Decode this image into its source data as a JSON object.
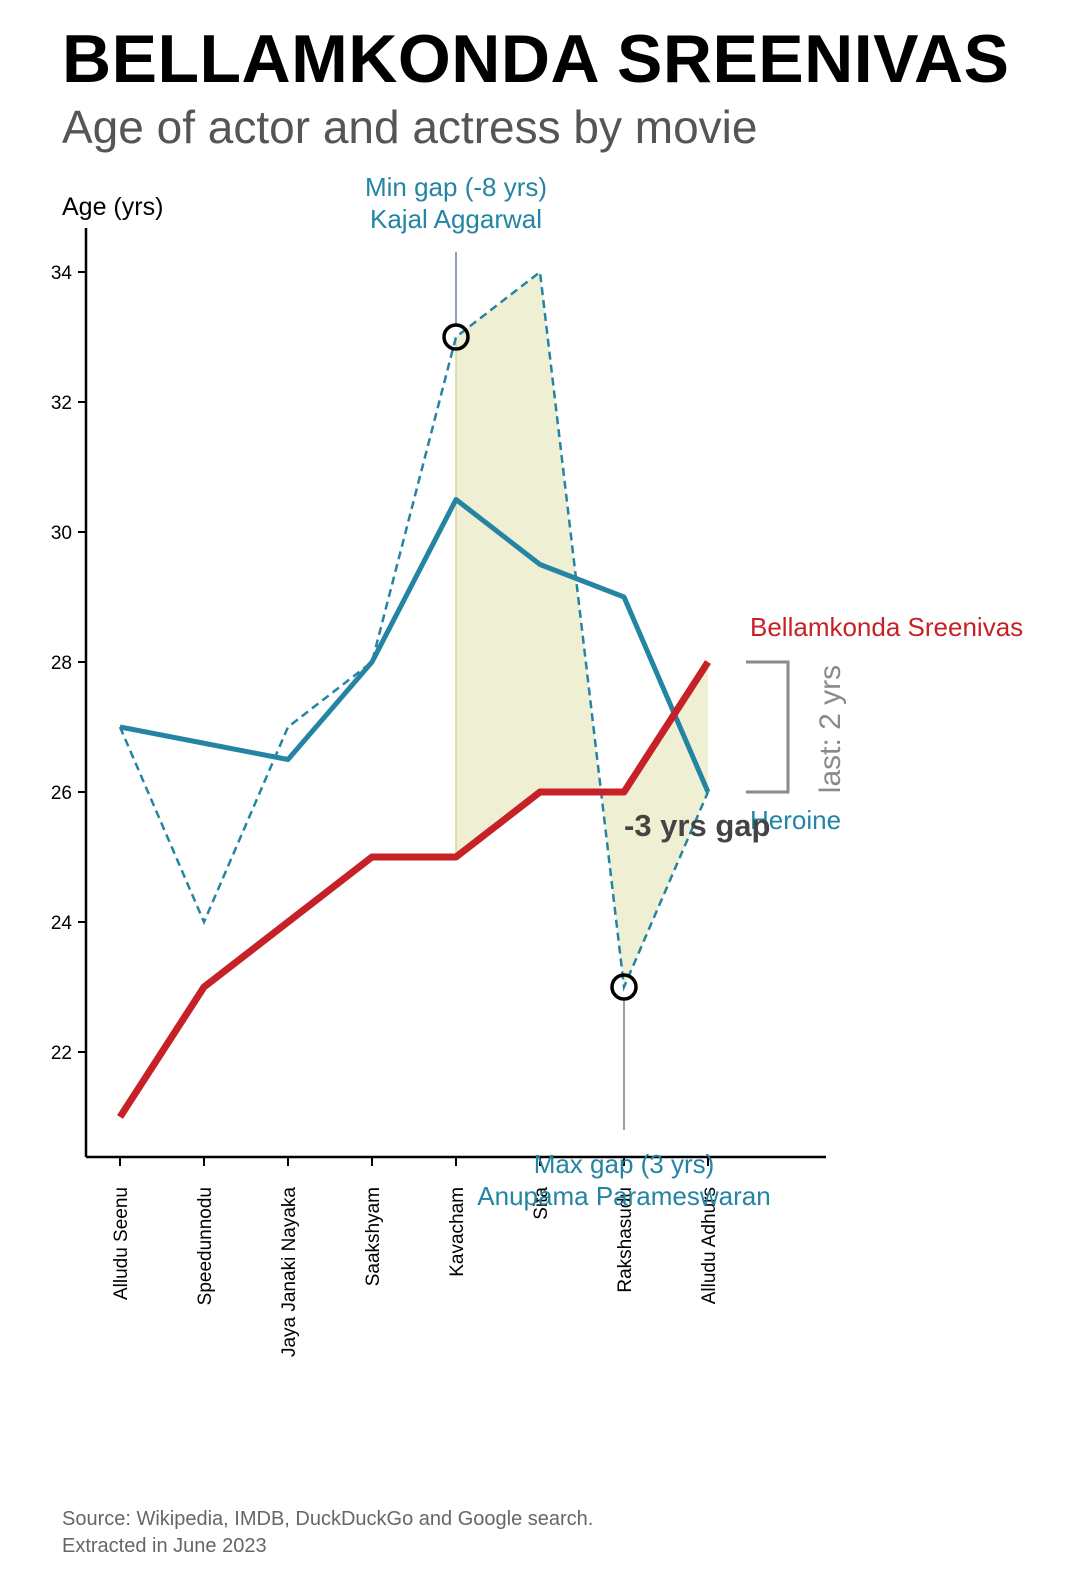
{
  "title": "BELLAMKONDA SREENIVAS",
  "subtitle": "Age of actor and actress by movie",
  "source_line1": "Source: Wikipedia, IMDB, DuckDuckGo and Google search.",
  "source_line2": "Extracted in June 2023",
  "chart_data": {
    "type": "line",
    "ylabel": "Age (yrs)",
    "categories": [
      "Alludu Seenu",
      "Speedunnodu",
      "Jaya Janaki Nayaka",
      "Saakshyam",
      "Kavacham",
      "Sita",
      "Rakshasudu",
      "Alludu Adhurs"
    ],
    "yticks": [
      22,
      24,
      26,
      28,
      30,
      32,
      34
    ],
    "ylim": [
      20.35,
      34.65
    ],
    "series": [
      {
        "name": "Bellamkonda Sreenivas",
        "color": "#c62126",
        "style": "solid",
        "values": [
          21,
          23,
          24,
          25,
          25,
          26,
          26,
          28
        ]
      },
      {
        "name": "Heroine",
        "color": "#2384a3",
        "style": "dashed",
        "values": [
          27,
          24,
          27,
          28,
          33,
          34,
          23,
          26
        ]
      },
      {
        "name": "",
        "color": "#2384a3",
        "style": "solid",
        "values": [
          27,
          26.75,
          26.5,
          28,
          30.5,
          29.5,
          29,
          26
        ]
      }
    ],
    "shaded_range": {
      "from_index": 4,
      "to_index": 7,
      "color": "#e9e9c4"
    },
    "annotations": {
      "min_gap_line1": "Min gap (-8 yrs)",
      "min_gap_line2": "Kajal Aggarwal",
      "min_gap_index": 4,
      "max_gap_line1": "Max gap (3 yrs)",
      "max_gap_line2": "Anupama Parameswaran",
      "max_gap_index": 6,
      "gap_text": "-3 yrs gap",
      "last_text": "last: 2 yrs"
    }
  }
}
